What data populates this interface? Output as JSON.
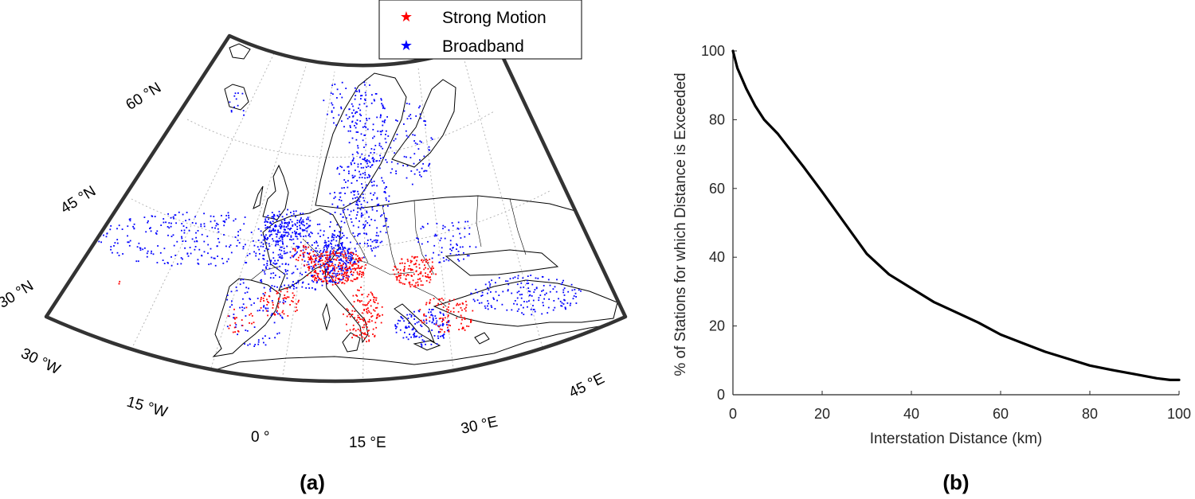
{
  "panels": {
    "a": "(a)",
    "b": "(b)"
  },
  "legend": {
    "items": [
      {
        "label": "Strong Motion",
        "color": "#ff0000",
        "marker": "star-icon"
      },
      {
        "label": "Broadband",
        "color": "#0000ff",
        "marker": "star-icon"
      }
    ]
  },
  "map": {
    "projection": "conic",
    "lat_range": [
      30,
      72
    ],
    "lon_range": [
      -30,
      50
    ],
    "graticule_lat": [
      30,
      45,
      60
    ],
    "graticule_lon": [
      -30,
      -15,
      0,
      15,
      30,
      45
    ],
    "lat_labels": [
      "30 °N",
      "45 °N",
      "60 °N"
    ],
    "lon_labels": [
      "30 °W",
      "15 °W",
      "0 °",
      "15 °E",
      "30 °E",
      "45 °E"
    ],
    "series_colors": {
      "strong_motion": "#ff0000",
      "broadband": "#0000ff"
    }
  },
  "chart_data": {
    "type": "line",
    "title": "",
    "xlabel": "Interstation Distance (km)",
    "ylabel": "% of Stations for which Distance is Exceeded",
    "xlim": [
      0,
      100
    ],
    "ylim": [
      0,
      100
    ],
    "xticks": [
      0,
      20,
      40,
      60,
      80,
      100
    ],
    "yticks": [
      0,
      20,
      40,
      60,
      80,
      100
    ],
    "grid": false,
    "line_color": "#000000",
    "x": [
      0,
      1,
      3,
      5,
      7,
      10,
      13,
      16,
      20,
      25,
      30,
      35,
      40,
      45,
      50,
      55,
      60,
      65,
      70,
      75,
      80,
      85,
      90,
      95,
      98,
      100
    ],
    "y": [
      100,
      95,
      89,
      84,
      80,
      76,
      71,
      66,
      59,
      50,
      41,
      35,
      31,
      27,
      24,
      21,
      17.5,
      15,
      12.5,
      10.5,
      8.5,
      7.2,
      6,
      4.8,
      4.3,
      4.3
    ]
  }
}
